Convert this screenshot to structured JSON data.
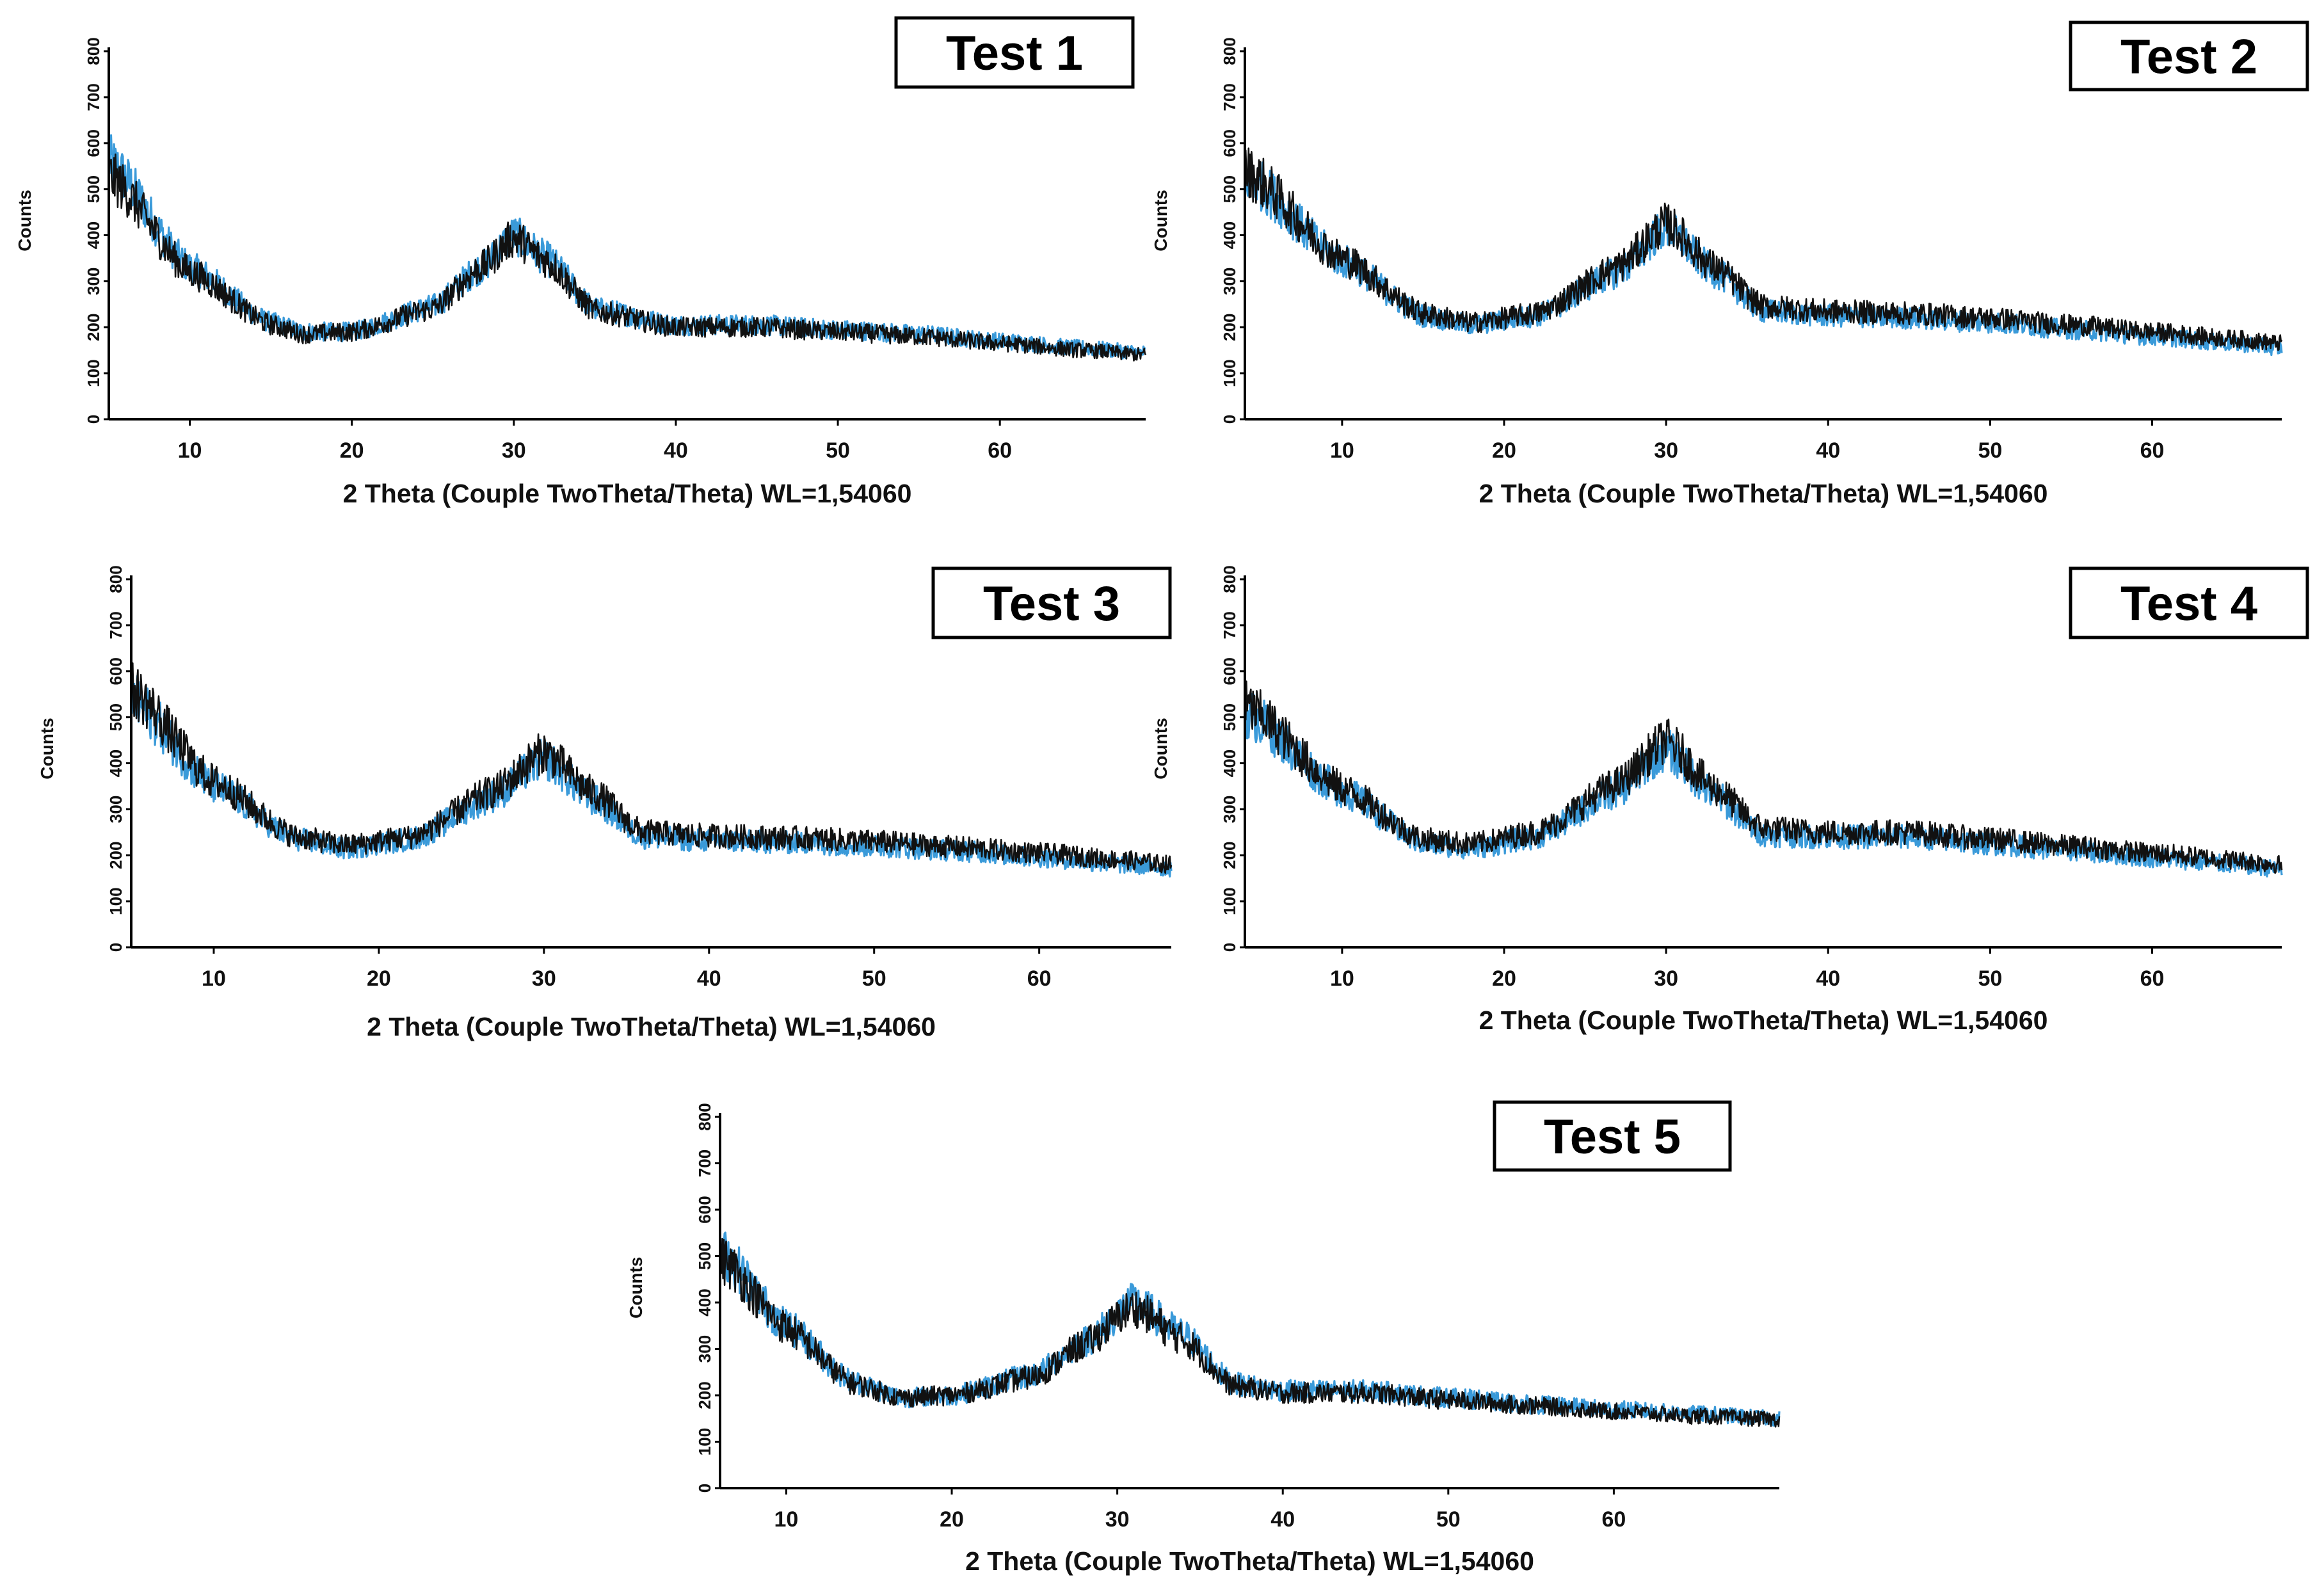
{
  "colors": {
    "series_blue": "#3a9ad9",
    "series_black": "#111111"
  },
  "chart_data": [
    {
      "type": "line",
      "title": "Test 1",
      "xlabel": "2 Theta (Couple TwoTheta/Theta) WL=1,54060",
      "ylabel": "Counts",
      "xlim": [
        5,
        69
      ],
      "ylim": [
        0,
        800
      ],
      "xticks": [
        10,
        20,
        30,
        40,
        50,
        60
      ],
      "yticks": [
        0,
        100,
        200,
        300,
        400,
        500,
        600,
        700,
        800
      ],
      "series": [
        {
          "name": "blue",
          "x": [
            5,
            10,
            15,
            17,
            20,
            25,
            28,
            30,
            32,
            35,
            40,
            45,
            50,
            55,
            60,
            65,
            69
          ],
          "values": [
            560,
            330,
            210,
            190,
            190,
            245,
            330,
            400,
            350,
            240,
            205,
            205,
            195,
            185,
            170,
            155,
            145
          ]
        },
        {
          "name": "black",
          "x": [
            5,
            10,
            15,
            17,
            20,
            25,
            28,
            30,
            32,
            35,
            40,
            45,
            50,
            55,
            60,
            65,
            69
          ],
          "values": [
            530,
            320,
            205,
            185,
            190,
            240,
            330,
            395,
            345,
            235,
            200,
            200,
            190,
            180,
            165,
            150,
            140
          ]
        }
      ]
    },
    {
      "type": "line",
      "title": "Test 2",
      "xlabel": "2 Theta (Couple TwoTheta/Theta) WL=1,54060",
      "ylabel": "Counts",
      "xlim": [
        4,
        68
      ],
      "ylim": [
        0,
        800
      ],
      "xticks": [
        10,
        20,
        30,
        40,
        50,
        60
      ],
      "yticks": [
        0,
        100,
        200,
        300,
        400,
        500,
        600,
        700,
        800
      ],
      "series": [
        {
          "name": "blue",
          "x": [
            4,
            10,
            15,
            18,
            22,
            27,
            30,
            33,
            36,
            40,
            45,
            50,
            55,
            60,
            65,
            68
          ],
          "values": [
            530,
            345,
            225,
            205,
            225,
            320,
            415,
            320,
            235,
            225,
            220,
            210,
            195,
            180,
            165,
            155
          ]
        },
        {
          "name": "black",
          "x": [
            4,
            10,
            15,
            18,
            22,
            27,
            30,
            33,
            36,
            40,
            45,
            50,
            55,
            60,
            65,
            68
          ],
          "values": [
            540,
            350,
            230,
            210,
            230,
            330,
            425,
            330,
            245,
            235,
            230,
            220,
            205,
            190,
            175,
            165
          ]
        }
      ]
    },
    {
      "type": "line",
      "title": "Test 3",
      "xlabel": "2 Theta (Couple TwoTheta/Theta) WL=1,54060",
      "ylabel": "Counts",
      "xlim": [
        5,
        68
      ],
      "ylim": [
        0,
        800
      ],
      "xticks": [
        10,
        20,
        30,
        40,
        50,
        60
      ],
      "yticks": [
        0,
        100,
        200,
        300,
        400,
        500,
        600,
        700,
        800
      ],
      "series": [
        {
          "name": "blue",
          "x": [
            5,
            10,
            15,
            18,
            22,
            27,
            30,
            33,
            36,
            40,
            45,
            50,
            55,
            60,
            65,
            68
          ],
          "values": [
            540,
            350,
            235,
            215,
            235,
            330,
            410,
            320,
            240,
            232,
            228,
            220,
            210,
            195,
            180,
            172
          ]
        },
        {
          "name": "black",
          "x": [
            5,
            10,
            15,
            18,
            22,
            27,
            30,
            33,
            36,
            40,
            45,
            50,
            55,
            60,
            65,
            68
          ],
          "values": [
            560,
            360,
            240,
            222,
            240,
            340,
            425,
            335,
            250,
            242,
            238,
            230,
            218,
            205,
            190,
            180
          ]
        }
      ]
    },
    {
      "type": "line",
      "title": "Test 4",
      "xlabel": "2 Theta (Couple TwoTheta/Theta) WL=1,54060",
      "ylabel": "Counts",
      "xlim": [
        4,
        68
      ],
      "ylim": [
        0,
        800
      ],
      "xticks": [
        10,
        20,
        30,
        40,
        50,
        60
      ],
      "yticks": [
        0,
        100,
        200,
        300,
        400,
        500,
        600,
        700,
        800
      ],
      "series": [
        {
          "name": "blue",
          "x": [
            4,
            10,
            15,
            18,
            22,
            27,
            30,
            33,
            36,
            40,
            45,
            50,
            55,
            60,
            65,
            68
          ],
          "values": [
            510,
            340,
            225,
            215,
            240,
            340,
            430,
            330,
            245,
            240,
            240,
            225,
            210,
            195,
            180,
            170
          ]
        },
        {
          "name": "black",
          "x": [
            4,
            10,
            15,
            18,
            22,
            27,
            30,
            33,
            36,
            40,
            45,
            50,
            55,
            60,
            65,
            68
          ],
          "values": [
            525,
            345,
            235,
            225,
            250,
            355,
            450,
            345,
            258,
            250,
            250,
            235,
            220,
            205,
            190,
            180
          ]
        }
      ]
    },
    {
      "type": "line",
      "title": "Test 5",
      "xlabel": "2 Theta (Couple TwoTheta/Theta) WL=1,54060",
      "ylabel": "Counts",
      "xlim": [
        6,
        70
      ],
      "ylim": [
        0,
        800
      ],
      "xticks": [
        10,
        20,
        30,
        40,
        50,
        60
      ],
      "yticks": [
        0,
        100,
        200,
        300,
        400,
        500,
        600,
        700,
        800
      ],
      "series": [
        {
          "name": "blue",
          "x": [
            6,
            10,
            14,
            17,
            20,
            25,
            28,
            31,
            34,
            37,
            40,
            45,
            50,
            55,
            60,
            65,
            70
          ],
          "values": [
            510,
            350,
            230,
            195,
            200,
            245,
            315,
            400,
            330,
            225,
            210,
            210,
            195,
            180,
            170,
            160,
            150
          ]
        },
        {
          "name": "black",
          "x": [
            6,
            10,
            14,
            17,
            20,
            25,
            28,
            31,
            34,
            37,
            40,
            45,
            50,
            55,
            60,
            65,
            70
          ],
          "values": [
            495,
            345,
            225,
            195,
            200,
            240,
            310,
            390,
            320,
            220,
            205,
            205,
            190,
            178,
            165,
            155,
            148
          ]
        }
      ]
    }
  ]
}
